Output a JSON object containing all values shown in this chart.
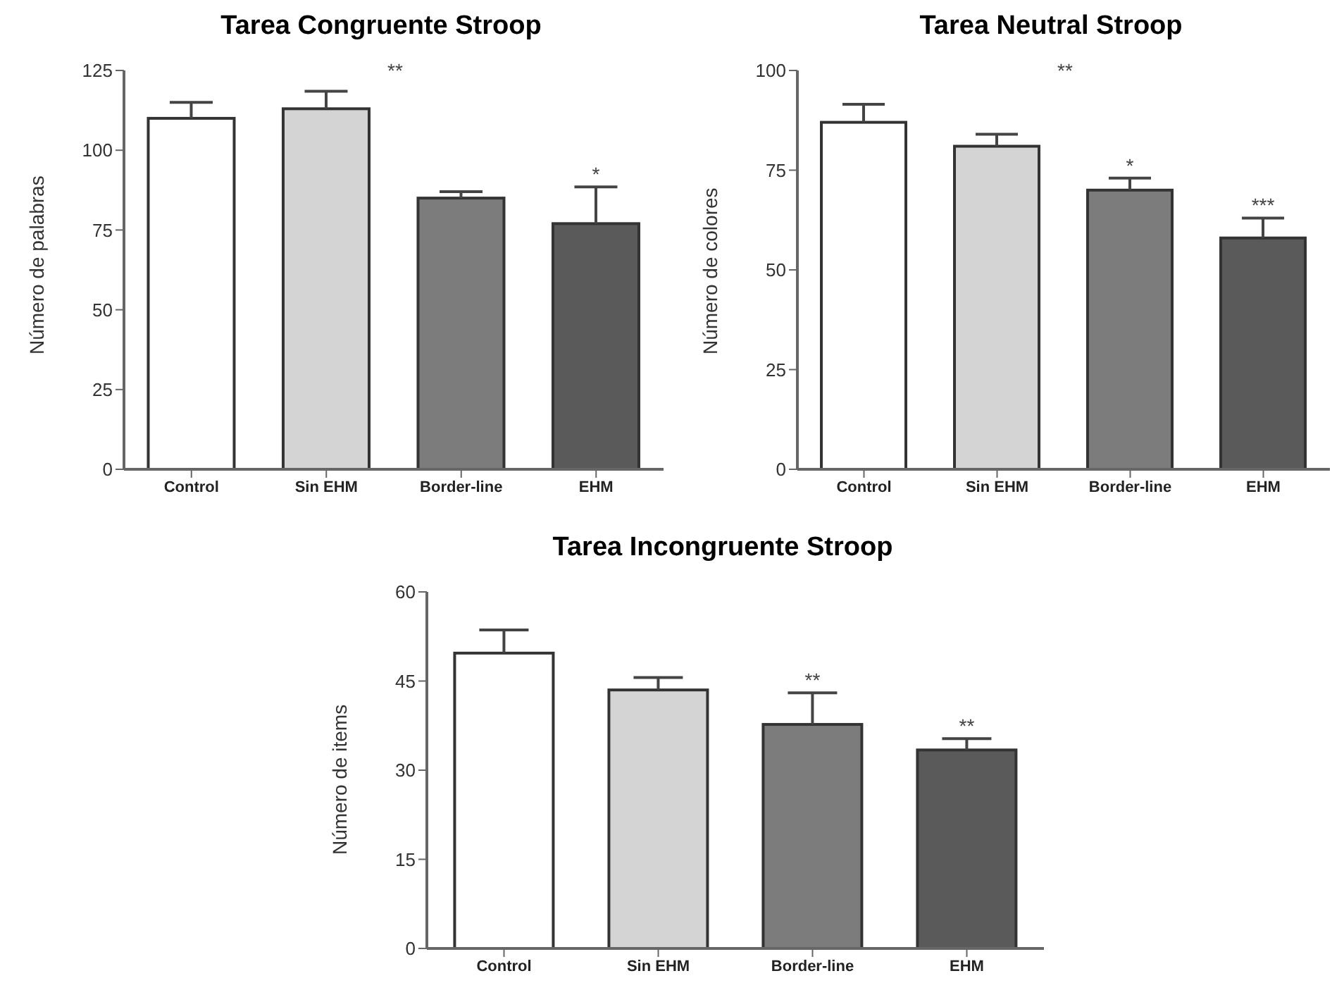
{
  "chart_data": [
    {
      "type": "bar",
      "title": "Tarea Congruente Stroop",
      "ylabel": "Número de palabras",
      "categories": [
        "Control",
        "Sin EHM",
        "Border-line",
        "EHM"
      ],
      "values": [
        110,
        113,
        85,
        77
      ],
      "colors": [
        "#ffffff",
        "#d4d4d4",
        "#7c7c7c",
        "#5a5a5a"
      ],
      "errors": [
        [
          110,
          115
        ],
        [
          113,
          118.5
        ],
        [
          85,
          87
        ],
        [
          77,
          88.5
        ]
      ],
      "ylim": [
        0,
        125
      ],
      "yticks": [
        0,
        25,
        50,
        75,
        100,
        125
      ],
      "annotations": [
        "**",
        {
          "text": "*",
          "x": "EHM",
          "y": 77
        }
      ]
    },
    {
      "type": "bar",
      "title": "Tarea Neutral Stroop",
      "ylabel": "Número de colores",
      "categories": [
        "Control",
        "Sin EHM",
        "Border-line",
        "EHM"
      ],
      "values": [
        87,
        81,
        70,
        58
      ],
      "colors": [
        "#ffffff",
        "#d4d4d4",
        "#7c7c7c",
        "#5a5a5a"
      ],
      "errors": [
        [
          87,
          91.5
        ],
        [
          81,
          84
        ],
        [
          70,
          73
        ],
        [
          58,
          63
        ]
      ],
      "ylim": [
        0,
        100
      ],
      "yticks": [
        0,
        25,
        50,
        75,
        100
      ],
      "annotations": [
        "**",
        {
          "text": "*",
          "x": "Border-line",
          "y": 70
        },
        {
          "text": "***",
          "x": "EHM",
          "y": 58
        }
      ]
    },
    {
      "type": "bar",
      "title": "Tarea Incongruente Stroop",
      "ylabel": "Número de items",
      "categories": [
        "Control",
        "Sin EHM",
        "Border-line",
        "EHM"
      ],
      "values": [
        49.7,
        43.5,
        37.7,
        33.4
      ],
      "colors": [
        "#ffffff",
        "#d4d4d4",
        "#7c7c7c",
        "#5a5a5a"
      ],
      "errors": [
        [
          49.7,
          53.6
        ],
        [
          43.5,
          45.6
        ],
        [
          37.7,
          43
        ],
        [
          33.4,
          35.3
        ]
      ],
      "ylim": [
        0,
        60
      ],
      "yticks": [
        0,
        15,
        30,
        45,
        60
      ],
      "annotations": [
        {
          "text": "**",
          "x": "Border-line",
          "y": 37.7
        },
        {
          "text": "**",
          "x": "EHM",
          "y": 33.4
        }
      ]
    }
  ]
}
